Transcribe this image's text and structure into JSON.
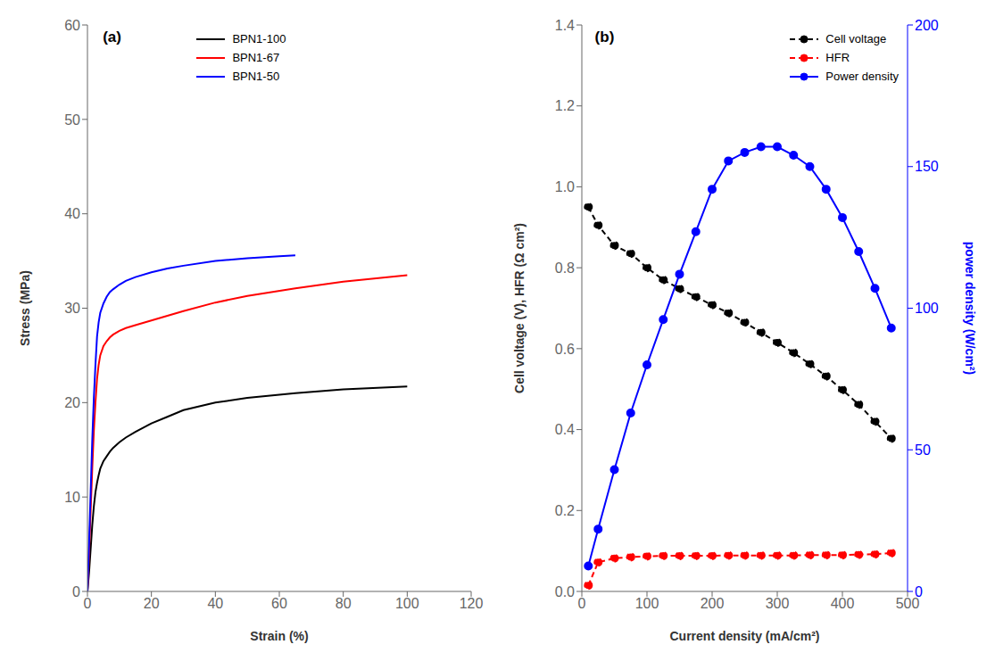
{
  "chart_data": [
    {
      "type": "line",
      "title": "(a)",
      "xlabel": "Strain (%)",
      "ylabel": "Stress (MPa)",
      "xlim": [
        0,
        120
      ],
      "ylim": [
        0,
        60
      ],
      "xticks": [
        0,
        20,
        40,
        60,
        80,
        100,
        120
      ],
      "yticks": [
        0,
        10,
        20,
        30,
        40,
        50,
        60
      ],
      "grid": false,
      "legend": "upper left",
      "series": [
        {
          "name": "BPN1-100",
          "color": "#000000",
          "line_style": "solid",
          "x": [
            0,
            0.5,
            1,
            1.5,
            2,
            2.5,
            3,
            3.5,
            4,
            5,
            6,
            7,
            8,
            10,
            12,
            15,
            20,
            25,
            30,
            40,
            50,
            65,
            80,
            100
          ],
          "values": [
            0,
            2.0,
            4.5,
            7.0,
            9.0,
            10.5,
            11.5,
            12.3,
            13.0,
            13.8,
            14.3,
            14.8,
            15.2,
            15.8,
            16.3,
            16.9,
            17.8,
            18.5,
            19.2,
            20.0,
            20.5,
            21.0,
            21.4,
            21.7
          ]
        },
        {
          "name": "BPN1-67",
          "color": "#ff0000",
          "line_style": "solid",
          "x": [
            0,
            0.5,
            1,
            1.5,
            2,
            2.5,
            3,
            3.5,
            4,
            5,
            6,
            7,
            8,
            10,
            12,
            15,
            20,
            25,
            30,
            40,
            50,
            65,
            80,
            100
          ],
          "values": [
            0,
            4.0,
            8.5,
            13.0,
            17.0,
            20.0,
            22.5,
            24.0,
            25.0,
            26.0,
            26.5,
            26.9,
            27.2,
            27.6,
            27.9,
            28.2,
            28.7,
            29.2,
            29.7,
            30.6,
            31.3,
            32.1,
            32.8,
            33.5
          ]
        },
        {
          "name": "BPN1-50",
          "color": "#0000ff",
          "line_style": "solid",
          "x": [
            0,
            0.5,
            1,
            1.5,
            2,
            2.5,
            3,
            3.5,
            4,
            5,
            6,
            7,
            8,
            10,
            12,
            15,
            20,
            25,
            30,
            40,
            50,
            60,
            65
          ],
          "values": [
            0,
            5.0,
            10.5,
            16.0,
            20.5,
            24.0,
            27.0,
            28.5,
            29.5,
            30.5,
            31.2,
            31.7,
            32.0,
            32.5,
            32.9,
            33.3,
            33.8,
            34.2,
            34.5,
            35.0,
            35.3,
            35.5,
            35.6
          ]
        }
      ]
    },
    {
      "type": "line",
      "title": "(b)",
      "xlabel": "Current density (mA/cm²)",
      "ylabel": "Cell voltage (V), HFR (Ω cm²)",
      "y2label": "power density (W/cm²)",
      "xlim": [
        0,
        500
      ],
      "ylim": [
        0,
        1.4
      ],
      "y2lim": [
        0,
        200
      ],
      "xticks": [
        0,
        100,
        200,
        300,
        400,
        500
      ],
      "yticks": [
        {
          "value": 0,
          "label": "0.0"
        },
        0.2,
        0.4,
        0.6,
        0.8,
        {
          "value": 1,
          "label": "1.0"
        },
        1.2,
        1.4
      ],
      "y2ticks": [
        0,
        50,
        100,
        150,
        200
      ],
      "grid": false,
      "legend": "upper right",
      "series": [
        {
          "name": "Cell voltage",
          "color": "#000000",
          "line_style": "dashed",
          "marker": "circle",
          "x": [
            10,
            25,
            50,
            75,
            100,
            125,
            150,
            175,
            200,
            225,
            250,
            275,
            300,
            325,
            350,
            375,
            400,
            425,
            450,
            475
          ],
          "values": [
            0.95,
            0.905,
            0.855,
            0.835,
            0.8,
            0.77,
            0.748,
            0.728,
            0.708,
            0.688,
            0.665,
            0.64,
            0.615,
            0.59,
            0.562,
            0.532,
            0.498,
            0.462,
            0.42,
            0.378
          ]
        },
        {
          "name": "HFR",
          "color": "#ff0000",
          "line_style": "dashed",
          "marker": "circle",
          "x": [
            10,
            25,
            50,
            75,
            100,
            125,
            150,
            175,
            200,
            225,
            250,
            275,
            300,
            325,
            350,
            375,
            400,
            425,
            450,
            475
          ],
          "values": [
            0.015,
            0.072,
            0.082,
            0.085,
            0.087,
            0.088,
            0.088,
            0.088,
            0.088,
            0.089,
            0.089,
            0.089,
            0.089,
            0.089,
            0.09,
            0.09,
            0.09,
            0.091,
            0.092,
            0.095
          ]
        },
        {
          "name": "Power density",
          "color": "#0000ff",
          "line_style": "solid",
          "marker": "circle",
          "axis": "y2",
          "x": [
            10,
            25,
            50,
            75,
            100,
            125,
            150,
            175,
            200,
            225,
            250,
            275,
            300,
            325,
            350,
            375,
            400,
            425,
            450,
            475
          ],
          "values": [
            9,
            22,
            43,
            63,
            80,
            96,
            112,
            127,
            142,
            152,
            155,
            157,
            157,
            154,
            150,
            142,
            132,
            120,
            107,
            93
          ]
        }
      ]
    }
  ]
}
